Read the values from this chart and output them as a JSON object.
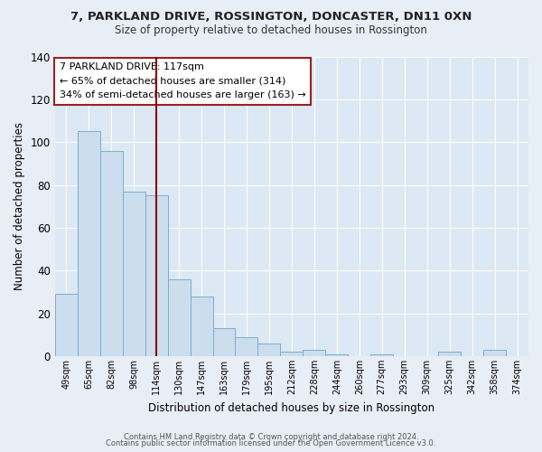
{
  "title1": "7, PARKLAND DRIVE, ROSSINGTON, DONCASTER, DN11 0XN",
  "title2": "Size of property relative to detached houses in Rossington",
  "xlabel": "Distribution of detached houses by size in Rossington",
  "ylabel": "Number of detached properties",
  "bar_labels": [
    "49sqm",
    "65sqm",
    "82sqm",
    "98sqm",
    "114sqm",
    "130sqm",
    "147sqm",
    "163sqm",
    "179sqm",
    "195sqm",
    "212sqm",
    "228sqm",
    "244sqm",
    "260sqm",
    "277sqm",
    "293sqm",
    "309sqm",
    "325sqm",
    "342sqm",
    "358sqm",
    "374sqm"
  ],
  "bar_values": [
    29,
    105,
    96,
    77,
    75,
    36,
    28,
    13,
    9,
    6,
    2,
    3,
    1,
    0,
    1,
    0,
    0,
    2,
    0,
    3,
    0
  ],
  "bar_color": "#ccdded",
  "bar_edge_color": "#7aaed0",
  "ylim": [
    0,
    140
  ],
  "yticks": [
    0,
    20,
    40,
    60,
    80,
    100,
    120,
    140
  ],
  "annotation_line_color": "#8b0000",
  "annotation_box_title": "7 PARKLAND DRIVE: 117sqm",
  "annotation_line1": "← 65% of detached houses are smaller (314)",
  "annotation_line2": "34% of semi-detached houses are larger (163) →",
  "annotation_box_color": "#ffffff",
  "annotation_box_edge_color": "#9b2020",
  "footer1": "Contains HM Land Registry data © Crown copyright and database right 2024.",
  "footer2": "Contains public sector information licensed under the Open Government Licence v3.0.",
  "background_color": "#e8eef5",
  "plot_bg_color": "#dce8f3"
}
